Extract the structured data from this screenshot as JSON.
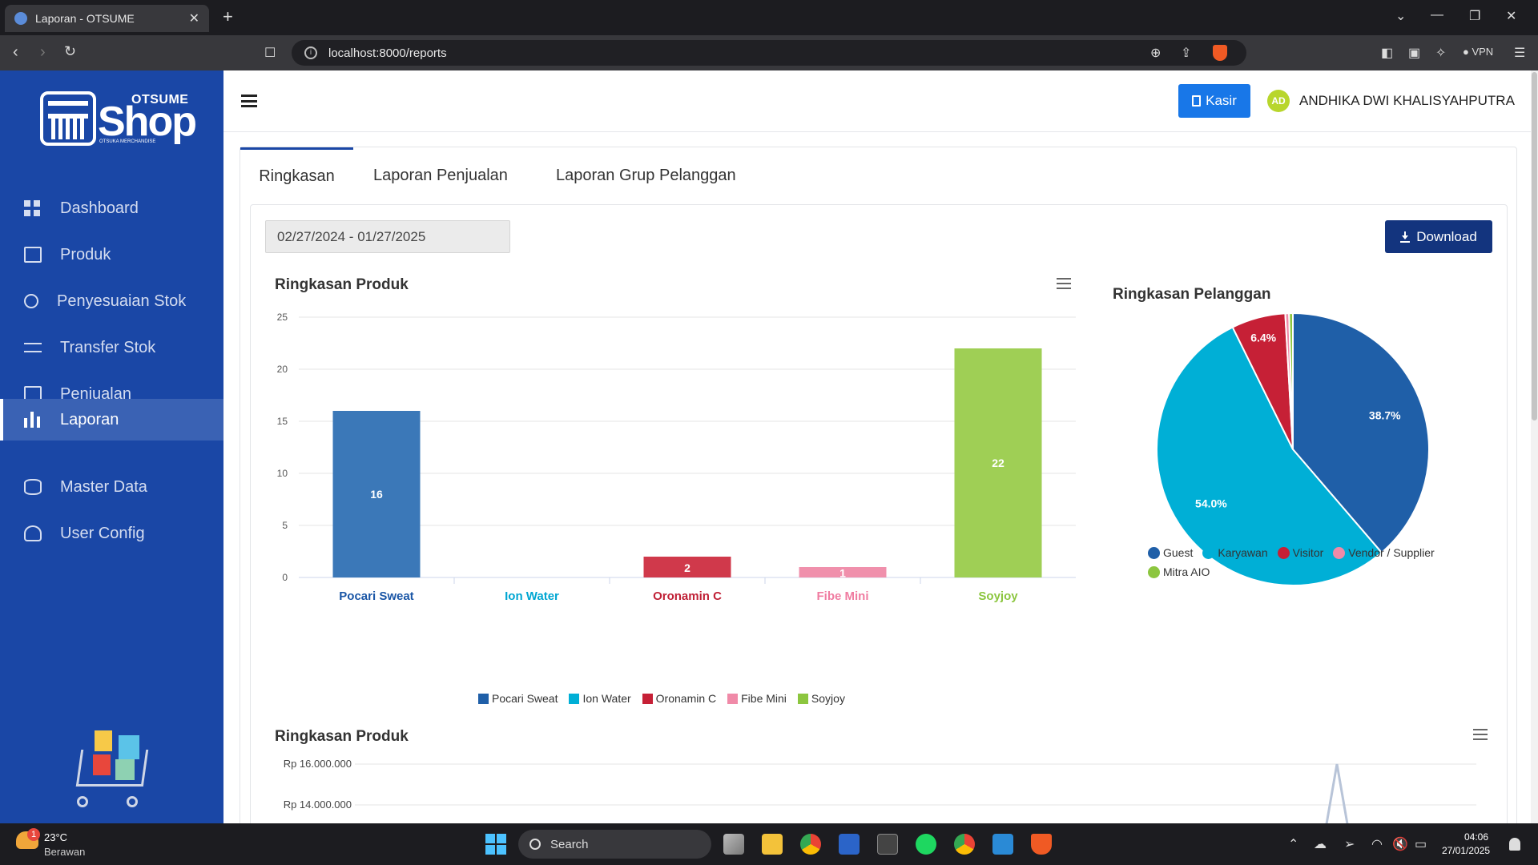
{
  "browser": {
    "tab_title": "Laporan - OTSUME",
    "url": "localhost:8000/reports",
    "vpn_label": "VPN"
  },
  "sidebar": {
    "logo": {
      "brand_top": "OTSUME",
      "brand_main": "Shop",
      "brand_sub": "OTSUKA MERCHANDISE"
    },
    "items": [
      {
        "label": "Dashboard",
        "icon": "dashboard-icon"
      },
      {
        "label": "Produk",
        "icon": "product-icon"
      },
      {
        "label": "Penyesuaian Stok",
        "icon": "stock-adjust-icon"
      },
      {
        "label": "Transfer Stok",
        "icon": "transfer-icon"
      },
      {
        "label": "Penjualan",
        "icon": "sales-icon"
      },
      {
        "label": "Laporan",
        "icon": "report-icon",
        "active": true
      },
      {
        "label": "Master Data",
        "icon": "database-icon"
      },
      {
        "label": "User Config",
        "icon": "user-config-icon"
      }
    ]
  },
  "header": {
    "kasir_label": "Kasir",
    "avatar_initials": "AD",
    "user_name": "ANDHIKA DWI KHALISYAHPUTRA"
  },
  "tabs": [
    {
      "label": "Ringkasan",
      "active": true
    },
    {
      "label": "Laporan Penjualan"
    },
    {
      "label": "Laporan Grup Pelanggan"
    }
  ],
  "filters": {
    "date_range": "02/27/2024 - 01/27/2025",
    "download_label": "Download"
  },
  "chart_data": [
    {
      "type": "bar",
      "title": "Ringkasan Produk",
      "categories": [
        "Pocari Sweat",
        "Ion Water",
        "Oronamin C",
        "Fibe Mini",
        "Soyjoy"
      ],
      "values": [
        16,
        0,
        2,
        1,
        22
      ],
      "colors": [
        "#3b78b8",
        "#00afd6",
        "#d0394b",
        "#f090ac",
        "#9fcf55"
      ],
      "label_colors": [
        "#1a56a6",
        "#00a6d2",
        "#c02036",
        "#f07ca1",
        "#8cc63f"
      ],
      "ylim": [
        0,
        25
      ],
      "yticks": [
        0,
        5,
        10,
        15,
        20,
        25
      ],
      "legend": [
        "Pocari Sweat",
        "Ion Water",
        "Oronamin C",
        "Fibe Mini",
        "Soyjoy"
      ],
      "legend_colors": [
        "#1f5fa8",
        "#00afd6",
        "#c62036",
        "#f08aa8",
        "#8cc63f"
      ],
      "grid": true
    },
    {
      "type": "pie",
      "title": "Ringkasan Pelanggan",
      "slices": [
        {
          "name": "Guest",
          "value": 38.7,
          "label": "38.7%",
          "color": "#1f5fa8"
        },
        {
          "name": "Karyawan",
          "value": 54.0,
          "label": "54.0%",
          "color": "#00afd6"
        },
        {
          "name": "Visitor",
          "value": 6.4,
          "label": "6.4%",
          "color": "#c62036"
        },
        {
          "name": "Vendor / Supplier",
          "value": 0.45,
          "label": "",
          "color": "#f08aa8"
        },
        {
          "name": "Mitra AIO",
          "value": 0.45,
          "label": "",
          "color": "#8cc63f"
        }
      ],
      "legend_placement": "bottom"
    },
    {
      "type": "line",
      "title": "Ringkasan Produk",
      "yticks_visible": [
        "Rp 16.000.000",
        "Rp 14.000.000"
      ]
    }
  ],
  "taskbar": {
    "temperature": "23°C",
    "weather": "Berawan",
    "weather_badge": "1",
    "search_placeholder": "Search",
    "time": "04:06",
    "date": "27/01/2025"
  }
}
